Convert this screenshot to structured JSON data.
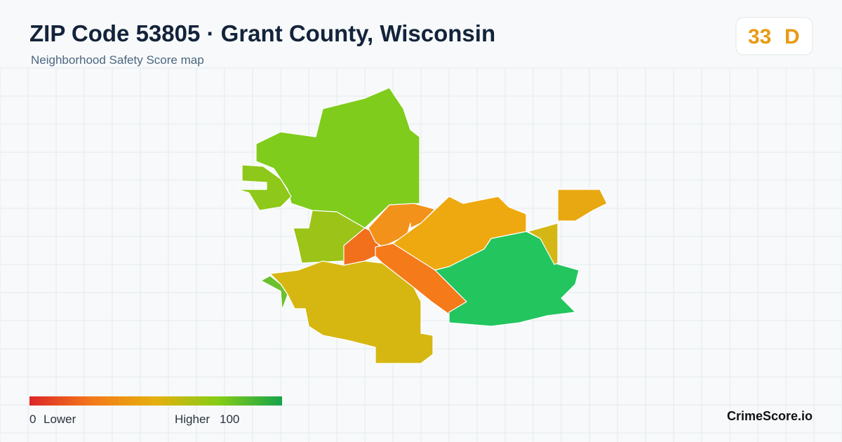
{
  "header": {
    "title": "ZIP Code 53805 · Grant County, Wisconsin",
    "subtitle": "Neighborhood Safety Score map"
  },
  "badge": {
    "score": 33,
    "grade": "D"
  },
  "legend": {
    "min": 0,
    "min_label": "Lower",
    "max_label": "Higher",
    "max": 100
  },
  "footer": {
    "brand": "CrimeScore.io"
  }
}
